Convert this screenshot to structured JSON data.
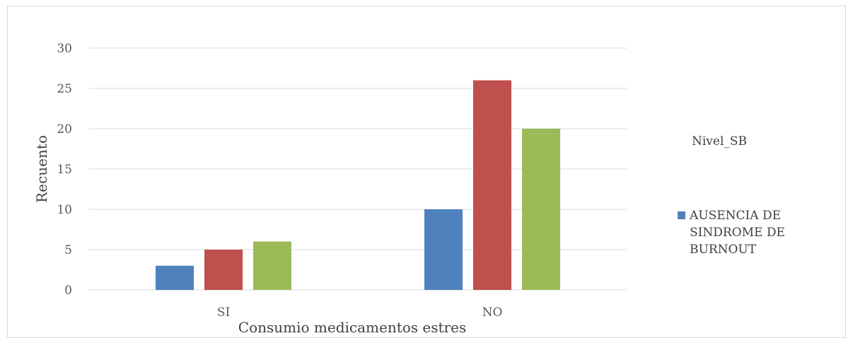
{
  "chart_data": {
    "type": "bar",
    "title": "",
    "xlabel": "Consumio medicamentos estres",
    "ylabel": "Recuento",
    "categories": [
      "SI",
      "NO"
    ],
    "ylim": [
      0,
      30
    ],
    "yticks": [
      0,
      5,
      10,
      15,
      20,
      25,
      30
    ],
    "grid": true,
    "legend_title": "Nivel_SB",
    "legend_position": "right",
    "series": [
      {
        "name": "AUSENCIA DE SINDROME DE BURNOUT",
        "values": [
          3,
          10
        ],
        "color": "#4F81BD"
      },
      {
        "values": [
          5,
          26
        ],
        "color": "#C0504D"
      },
      {
        "values": [
          6,
          20
        ],
        "color": "#9BBB59"
      }
    ]
  }
}
